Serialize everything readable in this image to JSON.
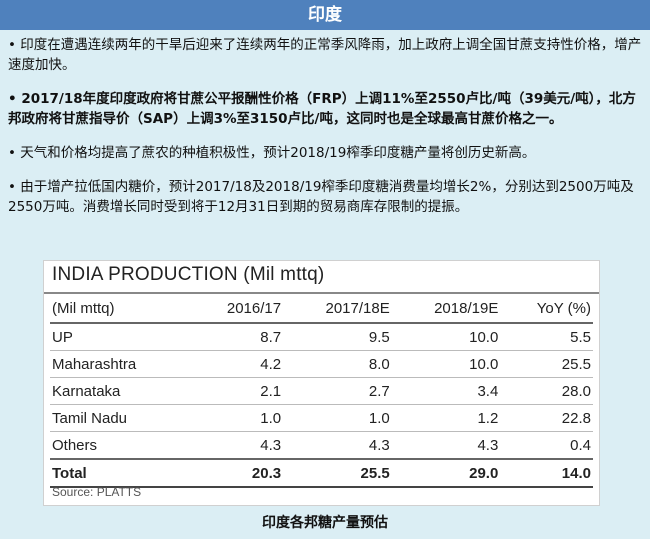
{
  "header": {
    "title": "印度"
  },
  "bullets": [
    "• 印度在遭遇连续两年的干旱后迎来了连续两年的正常季风降雨，加上政府上调全国甘蔗支持性价格，增产速度加快。",
    "• 2017/18年度印度政府将甘蔗公平报酬性价格（FRP）上调11%至2550卢比/吨（39美元/吨），北方邦政府将甘蔗指导价（SAP）上调3%至3150卢比/吨，这同时也是全球最高甘蔗价格之一。",
    "• 天气和价格均提高了蔗农的种植积极性，预计2018/19榨季印度糖产量将创历史新高。",
    "• 由于增产拉低国内糖价，预计2017/18及2018/19榨季印度糖消费量均增长2%，分别达到2500万吨及2550万吨。消费增长同时受到将于12月31日到期的贸易商库存限制的提振。"
  ],
  "table": {
    "title": "INDIA PRODUCTION (Mil mttq)",
    "columns": [
      "(Mil mttq)",
      "2016/17",
      "2017/18E",
      "2018/19E",
      "YoY (%)"
    ],
    "rows": [
      [
        "UP",
        "8.7",
        "9.5",
        "10.0",
        "5.5"
      ],
      [
        "Maharashtra",
        "4.2",
        "8.0",
        "10.0",
        "25.5"
      ],
      [
        "Karnataka",
        "2.1",
        "2.7",
        "3.4",
        "28.0"
      ],
      [
        "Tamil Nadu",
        "1.0",
        "1.0",
        "1.2",
        "22.8"
      ],
      [
        "Others",
        "4.3",
        "4.3",
        "4.3",
        "0.4"
      ]
    ],
    "total": [
      "Total",
      "20.3",
      "25.5",
      "29.0",
      "14.0"
    ],
    "source": "Source: PLATTS"
  },
  "caption": "印度各邦糖产量预估",
  "colors": {
    "header_bg": "#4f81bd",
    "page_bg": "#dbeef4"
  }
}
